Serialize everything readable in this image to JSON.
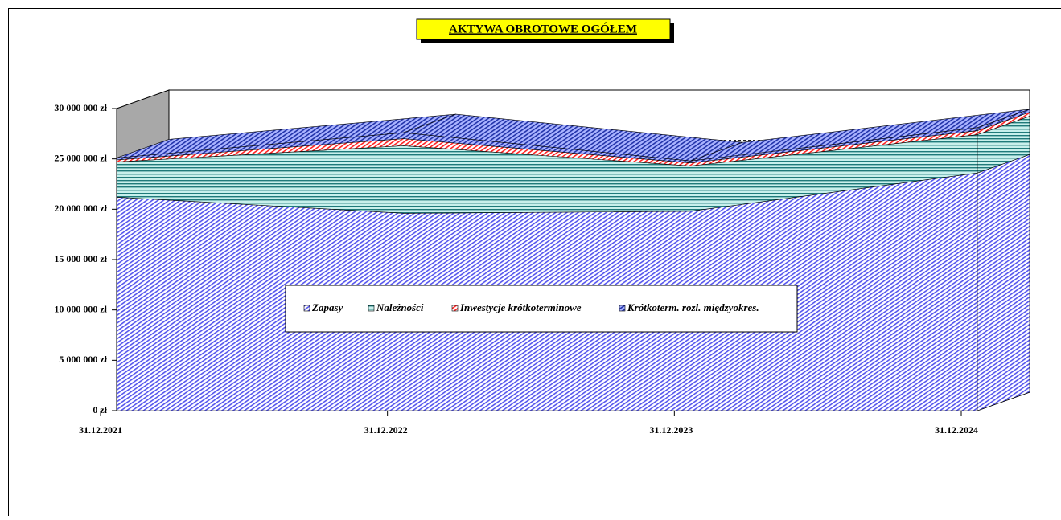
{
  "chart_data": {
    "type": "area",
    "title": "AKTYWA  OBROTOWE OGÓŁEM",
    "categories": [
      "31.12.2021",
      "31.12.2022",
      "31.12.2023",
      "31.12.2024"
    ],
    "series": [
      {
        "name": "Zapasy",
        "color": "#6666ff",
        "values": [
          21200000,
          19600000,
          19800000,
          23600000
        ]
      },
      {
        "name": "Należności",
        "color": "#2e8b8b",
        "values": [
          3500000,
          6700000,
          4500000,
          3800000
        ]
      },
      {
        "name": "Inwestycje krótkoterminowe",
        "color": "#ff3333",
        "values": [
          200000,
          700000,
          300000,
          400000
        ]
      },
      {
        "name": "Krótkoterm. rozl. międzyokres.",
        "color": "#3344cc",
        "values": [
          200000,
          600000,
          200000,
          300000
        ]
      }
    ],
    "ylim": [
      0,
      30000000
    ],
    "yticks": [
      {
        "value": 0,
        "label": "0 zł"
      },
      {
        "value": 5000000,
        "label": "5 000 000 zł"
      },
      {
        "value": 10000000,
        "label": "10 000 000 zł"
      },
      {
        "value": 15000000,
        "label": "15 000 000 zł"
      },
      {
        "value": 20000000,
        "label": "20 000 000 zł"
      },
      {
        "value": 25000000,
        "label": "25 000 000 zł"
      },
      {
        "value": 30000000,
        "label": "30 000 000 zł"
      }
    ],
    "grid": true,
    "stacked": true
  }
}
